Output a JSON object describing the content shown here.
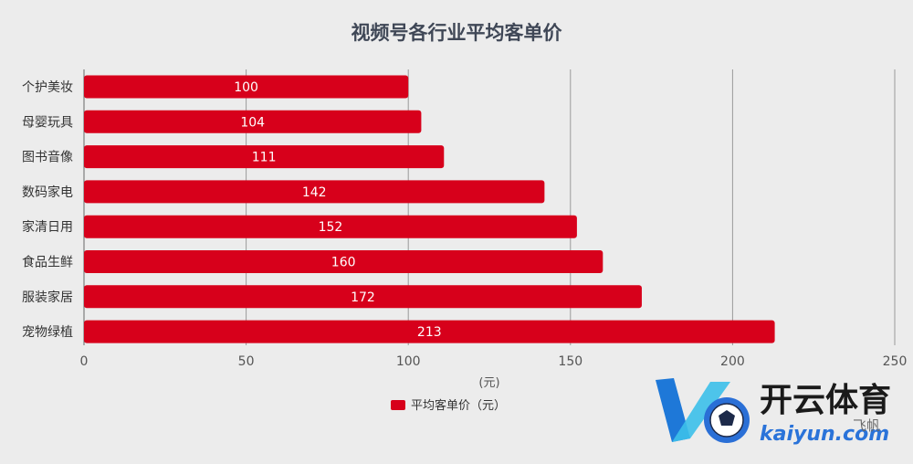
{
  "chart_data": {
    "type": "bar",
    "orientation": "horizontal",
    "title": "视频号各行业平均客单价",
    "categories": [
      "个护美妆",
      "母婴玩具",
      "图书音像",
      "数码家电",
      "家清日用",
      "食品生鲜",
      "服装家居",
      "宠物绿植"
    ],
    "series": [
      {
        "name": "平均客单价（元）",
        "values": [
          100,
          104,
          111,
          142,
          152,
          160,
          172,
          213
        ],
        "color": "#d7001b"
      }
    ],
    "xlabel": "(元)",
    "ylabel": "",
    "xlim": [
      0,
      250
    ],
    "x_ticks": [
      0,
      50,
      100,
      150,
      200,
      250
    ],
    "grid": "vertical",
    "legend_position": "bottom-center",
    "data_labels": true
  },
  "watermark": {
    "brand_cn": "开云体育",
    "brand_en": "kaiyun.com",
    "stamp": "飞帆",
    "icon": "kaiyun-k-ball-logo"
  },
  "colors": {
    "background": "#ececec",
    "bar": "#d7001b",
    "grid": "#9a9a9a",
    "title": "#3f4756"
  }
}
